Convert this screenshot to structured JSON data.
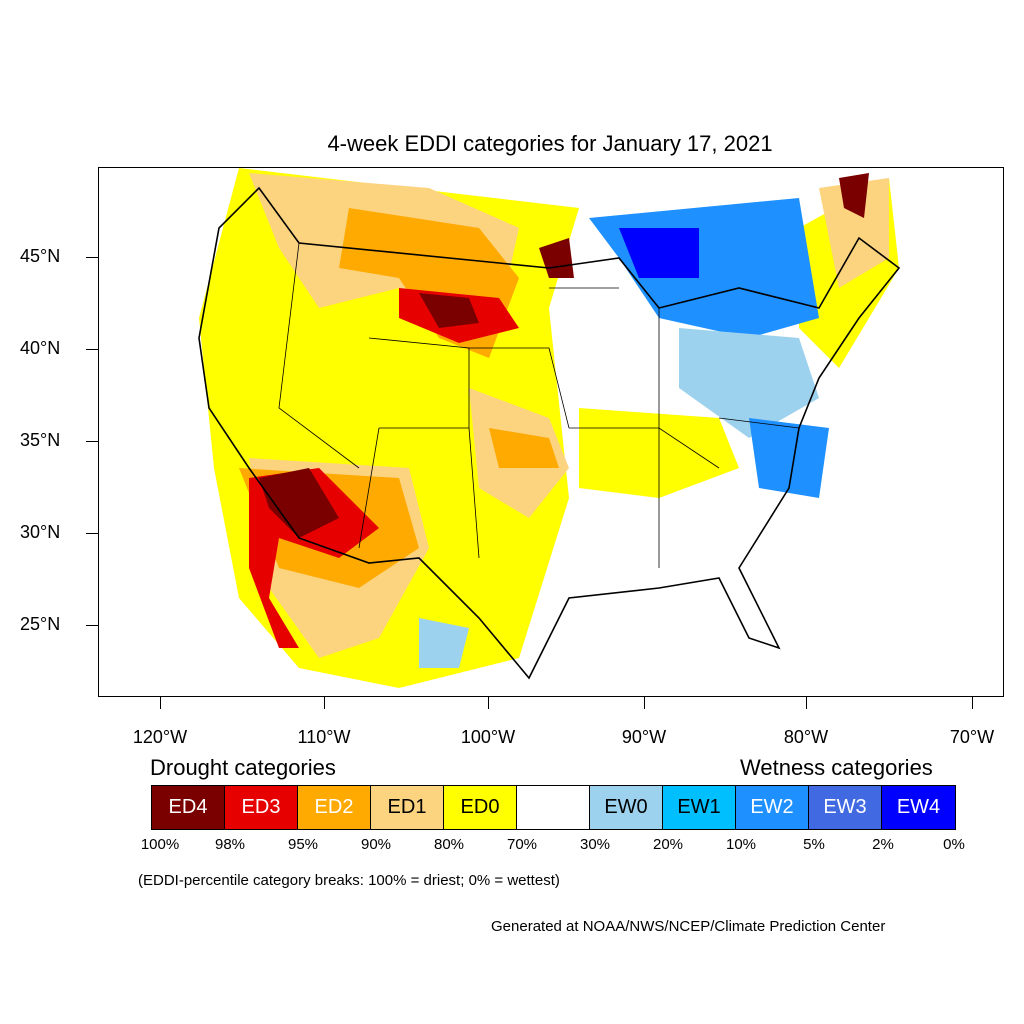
{
  "title": "4-week EDDI categories for January 17, 2021",
  "lat_labels": [
    "45°N",
    "40°N",
    "35°N",
    "30°N",
    "25°N"
  ],
  "lon_labels": [
    "120°W",
    "110°W",
    "100°W",
    "90°W",
    "80°W",
    "70°W"
  ],
  "legend": {
    "drought_heading": "Drought categories",
    "wetness_heading": "Wetness categories",
    "categories": [
      {
        "label": "ED4",
        "color": "#7a0000",
        "text_color": "#ffffff"
      },
      {
        "label": "ED3",
        "color": "#e60000",
        "text_color": "#ffffff"
      },
      {
        "label": "ED2",
        "color": "#ffaa00",
        "text_color": "#ffffff"
      },
      {
        "label": "ED1",
        "color": "#fcd37f",
        "text_color": "#000000"
      },
      {
        "label": "ED0",
        "color": "#ffff00",
        "text_color": "#000000"
      },
      {
        "label": "",
        "color": "#ffffff",
        "text_color": "#000000"
      },
      {
        "label": "EW0",
        "color": "#9dd2ee",
        "text_color": "#000000"
      },
      {
        "label": "EW1",
        "color": "#00bfff",
        "text_color": "#000000"
      },
      {
        "label": "EW2",
        "color": "#1e90ff",
        "text_color": "#ffffff"
      },
      {
        "label": "EW3",
        "color": "#4169e1",
        "text_color": "#ffffff"
      },
      {
        "label": "EW4",
        "color": "#0000ff",
        "text_color": "#ffffff"
      }
    ],
    "percentiles": [
      "100%",
      "98%",
      "95%",
      "90%",
      "80%",
      "70%",
      "30%",
      "20%",
      "10%",
      "5%",
      "2%",
      "0%"
    ]
  },
  "note": "(EDDI-percentile category breaks: 100% = driest; 0% = wettest)",
  "credit": "Generated at NOAA/NWS/NCEP/Climate Prediction Center"
}
